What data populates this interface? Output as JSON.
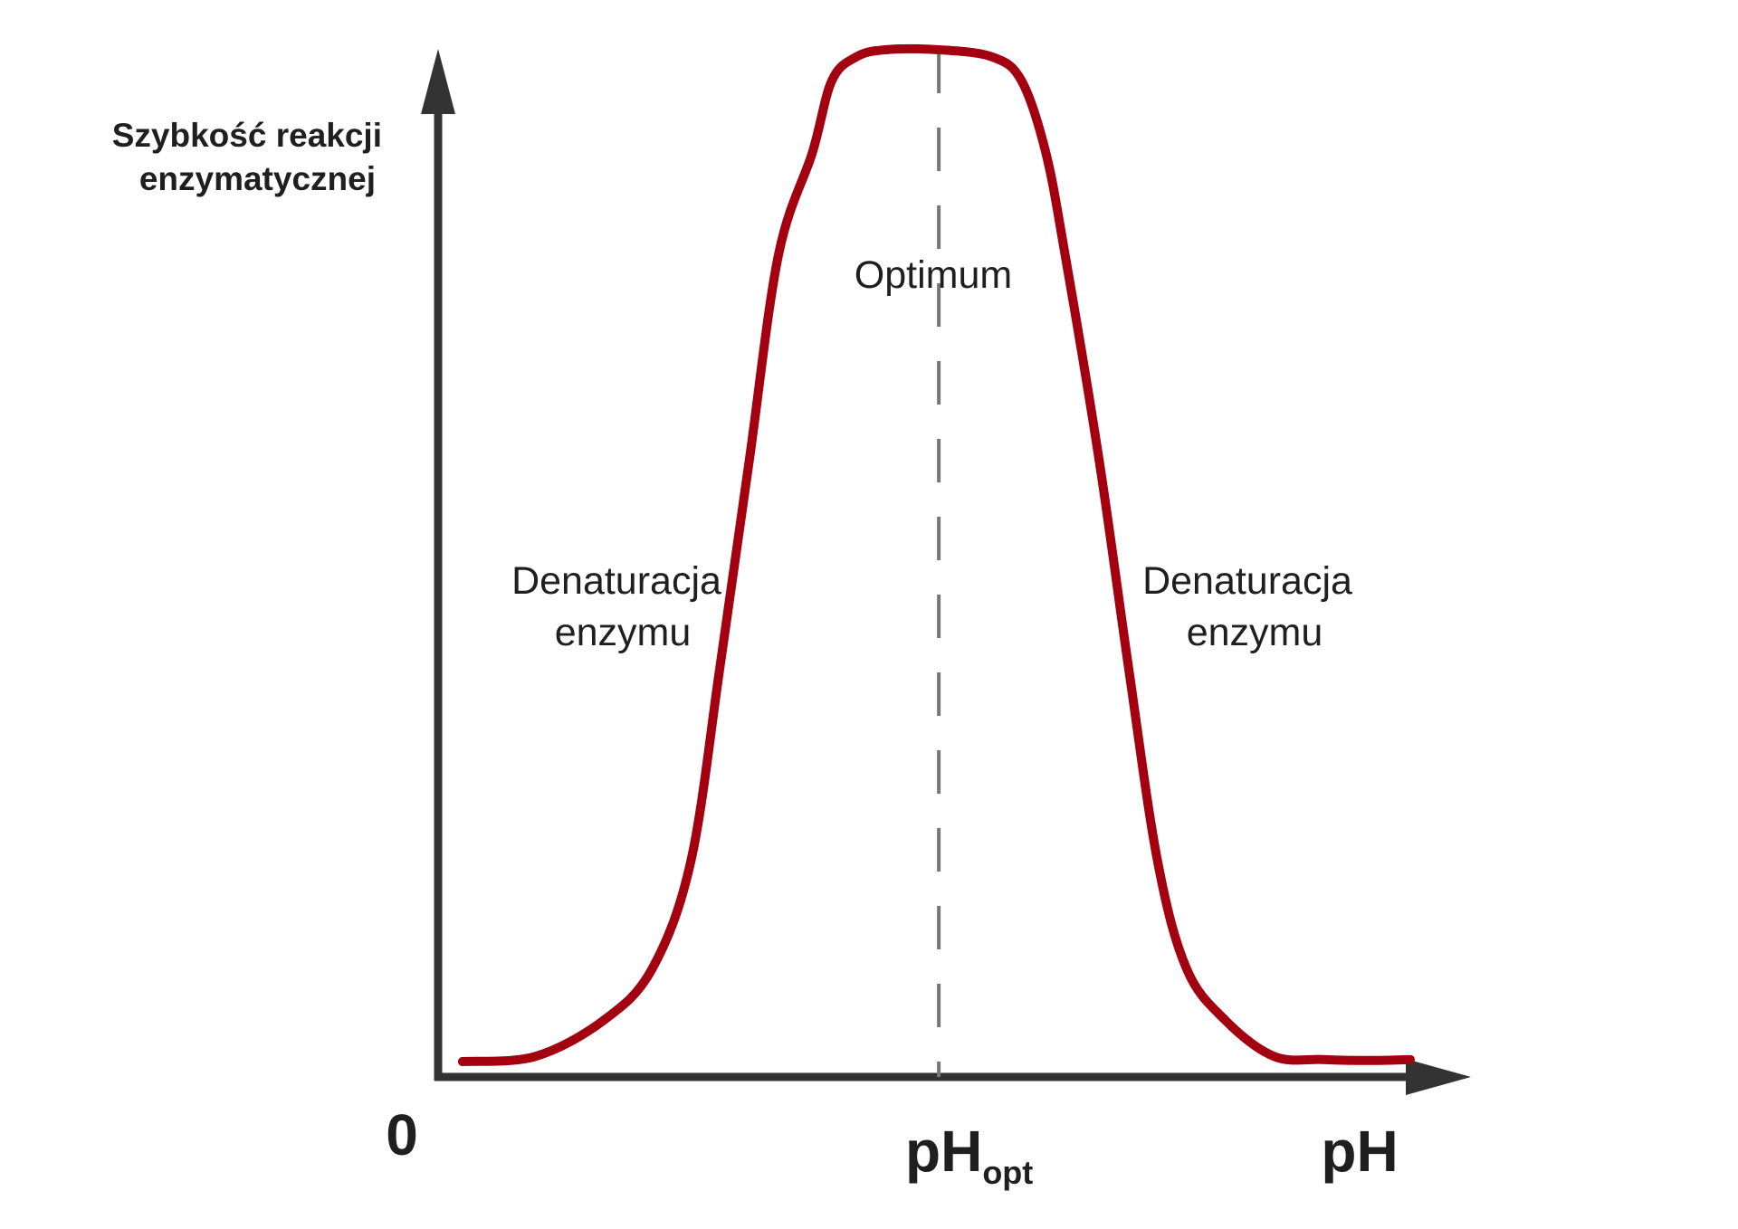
{
  "chart_data": {
    "type": "line",
    "title": "",
    "ylabel_lines": [
      "Szybkość reakcji",
      "enzymatycznej"
    ],
    "xlabel": "pH",
    "origin_label": "0",
    "optimum_tick": {
      "main": "pH",
      "sub": "opt"
    },
    "annotations": {
      "optimum": "Optimum",
      "left_region": [
        "Denaturacja",
        "enzymu"
      ],
      "right_region": [
        "Denaturacja",
        "enzymu"
      ]
    },
    "xlim": [
      0,
      100
    ],
    "ylim": [
      0,
      100
    ],
    "optimum_x": 51.5,
    "series": [
      {
        "name": "Szybkość reakcji enzymatycznej",
        "x": [
          2.5,
          10,
          17,
          22,
          26,
          29,
          32,
          35,
          38.5,
          40.5,
          43,
          46,
          51.5,
          57,
          60,
          62.5,
          64.5,
          68,
          71,
          74,
          77,
          81,
          86,
          91,
          96,
          100
        ],
        "values": [
          1.5,
          2,
          5.5,
          10.5,
          21,
          40,
          60,
          80,
          90,
          97,
          99.3,
          100,
          100,
          99.3,
          97,
          90,
          80,
          60,
          40,
          21,
          10.5,
          5.5,
          2,
          1.7,
          1.6,
          1.7
        ]
      }
    ],
    "colors": {
      "curve": "#a30010",
      "axis": "#333333",
      "guide": "#777777",
      "text": "#1f1f1f"
    }
  }
}
